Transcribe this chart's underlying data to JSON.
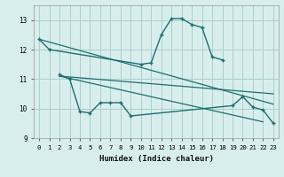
{
  "background_color": "#d8eeed",
  "grid_color": "#aad0cc",
  "line_color": "#1e6e6e",
  "xlabel": "Humidex (Indice chaleur)",
  "ylim": [
    9,
    13.5
  ],
  "xlim": [
    -0.5,
    23.5
  ],
  "yticks": [
    9,
    10,
    11,
    12,
    13
  ],
  "xticks": [
    0,
    1,
    2,
    3,
    4,
    5,
    6,
    7,
    8,
    9,
    10,
    11,
    12,
    13,
    14,
    15,
    16,
    17,
    18,
    19,
    20,
    21,
    22,
    23
  ],
  "curve1_x": [
    0,
    1,
    10,
    11,
    12,
    13,
    14,
    15,
    16,
    17,
    18
  ],
  "curve1_y": [
    12.35,
    12.0,
    11.5,
    11.55,
    12.5,
    13.05,
    13.05,
    12.85,
    12.75,
    11.75,
    11.65
  ],
  "curve2_x": [
    2,
    3,
    4,
    5,
    6,
    7,
    8,
    9,
    19,
    20,
    21,
    22,
    23
  ],
  "curve2_y": [
    11.15,
    11.0,
    9.9,
    9.85,
    10.2,
    10.2,
    10.2,
    9.75,
    10.1,
    10.4,
    10.05,
    9.95,
    9.5
  ],
  "trend1_x": [
    0,
    23
  ],
  "trend1_y": [
    12.35,
    10.15
  ],
  "trend2_x": [
    2,
    23
  ],
  "trend2_y": [
    11.1,
    10.5
  ],
  "trend3_x": [
    2,
    22
  ],
  "trend3_y": [
    11.1,
    9.55
  ]
}
